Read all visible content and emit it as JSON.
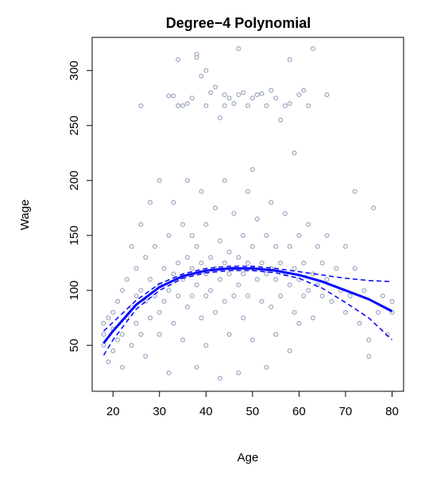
{
  "chart_data": {
    "type": "scatter",
    "title": "Degree−4 Polynomial",
    "xlabel": "Age",
    "ylabel": "Wage",
    "xlim": [
      15.52,
      82.48
    ],
    "ylim": [
      8.2,
      330.2
    ],
    "xticks": [
      20,
      30,
      40,
      50,
      60,
      70,
      80
    ],
    "yticks": [
      50,
      100,
      150,
      200,
      250,
      300
    ],
    "points": {
      "color": "#a2acc4",
      "x": [
        26,
        32,
        33,
        34,
        35,
        36,
        37,
        38,
        38,
        39,
        40,
        40,
        41,
        42,
        43,
        44,
        45,
        46,
        47,
        47,
        48,
        49,
        50,
        51,
        52,
        53,
        54,
        55,
        56,
        57,
        58,
        58,
        59,
        60,
        61,
        62,
        63,
        66,
        34,
        44,
        18,
        18,
        18,
        19,
        19,
        20,
        20,
        20,
        21,
        21,
        22,
        22,
        22,
        23,
        23,
        24,
        24,
        24,
        25,
        25,
        25,
        26,
        26,
        26,
        27,
        27,
        27,
        28,
        28,
        28,
        29,
        29,
        30,
        30,
        30,
        30,
        31,
        31,
        32,
        32,
        32,
        33,
        33,
        33,
        34,
        34,
        35,
        35,
        35,
        36,
        36,
        36,
        37,
        37,
        37,
        38,
        38,
        38,
        39,
        39,
        39,
        40,
        40,
        40,
        40,
        41,
        41,
        42,
        42,
        42,
        43,
        43,
        43,
        44,
        44,
        44,
        45,
        45,
        45,
        46,
        46,
        46,
        47,
        47,
        47,
        48,
        48,
        48,
        49,
        49,
        49,
        50,
        50,
        50,
        50,
        51,
        51,
        52,
        52,
        53,
        53,
        53,
        54,
        54,
        54,
        55,
        55,
        55,
        56,
        56,
        57,
        57,
        58,
        58,
        58,
        59,
        59,
        60,
        60,
        60,
        61,
        61,
        62,
        62,
        63,
        63,
        64,
        64,
        65,
        65,
        66,
        66,
        67,
        68,
        69,
        70,
        70,
        71,
        72,
        72,
        73,
        74,
        75,
        76,
        77,
        78,
        80,
        80,
        79,
        75
      ],
      "values": [
        268,
        277,
        277,
        310,
        268,
        270,
        275,
        315,
        312,
        295,
        300,
        268,
        280,
        285,
        257,
        278,
        275,
        270,
        320,
        278,
        280,
        268,
        275,
        278,
        279,
        268,
        282,
        275,
        255,
        268,
        270,
        310,
        225,
        278,
        282,
        268,
        320,
        278,
        268,
        268,
        70,
        60,
        50,
        75,
        35,
        65,
        80,
        45,
        55,
        90,
        60,
        100,
        30,
        75,
        110,
        85,
        50,
        140,
        95,
        70,
        120,
        100,
        60,
        160,
        90,
        130,
        40,
        110,
        75,
        180,
        95,
        140,
        105,
        80,
        200,
        60,
        120,
        90,
        100,
        150,
        25,
        115,
        70,
        180,
        125,
        95,
        110,
        160,
        55,
        130,
        85,
        200,
        120,
        95,
        150,
        105,
        140,
        30,
        125,
        75,
        190,
        115,
        95,
        160,
        50,
        130,
        100,
        120,
        175,
        80,
        110,
        145,
        20,
        125,
        90,
        200,
        115,
        135,
        60,
        120,
        95,
        170,
        130,
        105,
        25,
        115,
        150,
        75,
        125,
        95,
        190,
        120,
        140,
        210,
        55,
        110,
        165,
        125,
        90,
        115,
        150,
        30,
        120,
        85,
        180,
        110,
        140,
        60,
        125,
        95,
        115,
        170,
        105,
        140,
        45,
        120,
        80,
        110,
        150,
        70,
        125,
        95,
        100,
        160,
        115,
        75,
        105,
        140,
        95,
        125,
        110,
        150,
        90,
        120,
        100,
        80,
        140,
        95,
        120,
        190,
        70,
        100,
        55,
        175,
        80,
        95,
        90,
        80,
        60,
        40
      ]
    },
    "fit": {
      "color": "#0000ff",
      "x": [
        18,
        20,
        25,
        30,
        35,
        40,
        45,
        50,
        55,
        60,
        65,
        70,
        75,
        80
      ],
      "values": [
        52,
        63,
        87,
        103,
        113,
        118,
        120,
        120,
        118,
        114,
        108,
        100,
        92,
        81
      ]
    },
    "upper": {
      "color": "#0000ff",
      "x": [
        18,
        20,
        25,
        30,
        35,
        40,
        45,
        50,
        55,
        60,
        65,
        70,
        75,
        80
      ],
      "values": [
        63,
        71,
        91,
        106,
        115,
        120,
        122,
        122,
        120,
        117,
        114,
        111,
        109,
        108
      ]
    },
    "lower": {
      "color": "#0000ff",
      "x": [
        18,
        20,
        25,
        30,
        35,
        40,
        45,
        50,
        55,
        60,
        65,
        70,
        75,
        80
      ],
      "values": [
        41,
        55,
        83,
        100,
        111,
        116,
        118,
        118,
        116,
        111,
        102,
        89,
        75,
        55
      ]
    }
  }
}
